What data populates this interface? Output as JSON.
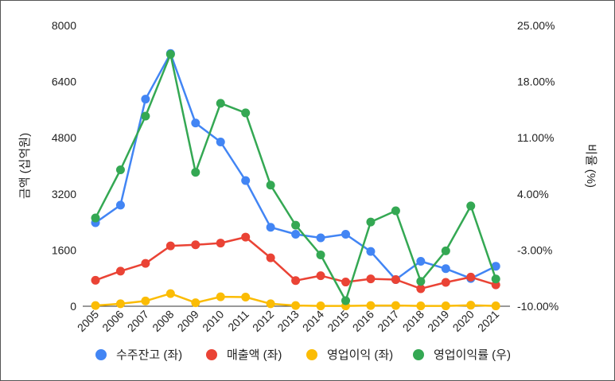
{
  "chart_data": {
    "type": "line",
    "categories": [
      "2005",
      "2006",
      "2007",
      "2008",
      "2009",
      "2010",
      "2011",
      "2012",
      "2013",
      "2014",
      "2015",
      "2016",
      "2017",
      "2018",
      "2019",
      "2020",
      "2021"
    ],
    "y_left": {
      "label": "금액 (십억원)",
      "min": 0,
      "max": 8000,
      "ticks": [
        "0",
        "1600",
        "3200",
        "4800",
        "6400",
        "8000"
      ]
    },
    "y_right": {
      "label": "비율 (%)",
      "min": -10,
      "max": 25,
      "ticks": [
        "-10.00%",
        "-3.00%",
        "4.00%",
        "11.00%",
        "18.00%",
        "25.00%"
      ]
    },
    "grid": false,
    "legend_position": "bottom",
    "series": [
      {
        "name": "수주잔고 (좌)",
        "axis": "left",
        "color": "#4285F4",
        "values": [
          2380,
          2880,
          5900,
          7200,
          5220,
          4680,
          3580,
          2250,
          2050,
          1950,
          2050,
          1560,
          760,
          1280,
          1070,
          790,
          1140
        ]
      },
      {
        "name": "매출액 (좌)",
        "axis": "left",
        "color": "#EA4335",
        "values": [
          740,
          1000,
          1220,
          1720,
          1750,
          1800,
          1970,
          1380,
          730,
          870,
          690,
          780,
          760,
          500,
          680,
          830,
          610
        ]
      },
      {
        "name": "영업이익 (좌)",
        "axis": "left",
        "color": "#FBBC04",
        "values": [
          20,
          70,
          150,
          360,
          100,
          270,
          260,
          70,
          20,
          10,
          10,
          20,
          20,
          10,
          10,
          30,
          10
        ]
      },
      {
        "name": "영업이익률 (우)",
        "axis": "right",
        "color": "#34A853",
        "values": [
          1.0,
          7.0,
          13.7,
          21.4,
          6.7,
          15.3,
          14.1,
          5.1,
          0.1,
          -3.6,
          -9.3,
          0.5,
          1.9,
          -6.9,
          -3.1,
          2.5,
          -6.6
        ]
      }
    ]
  }
}
